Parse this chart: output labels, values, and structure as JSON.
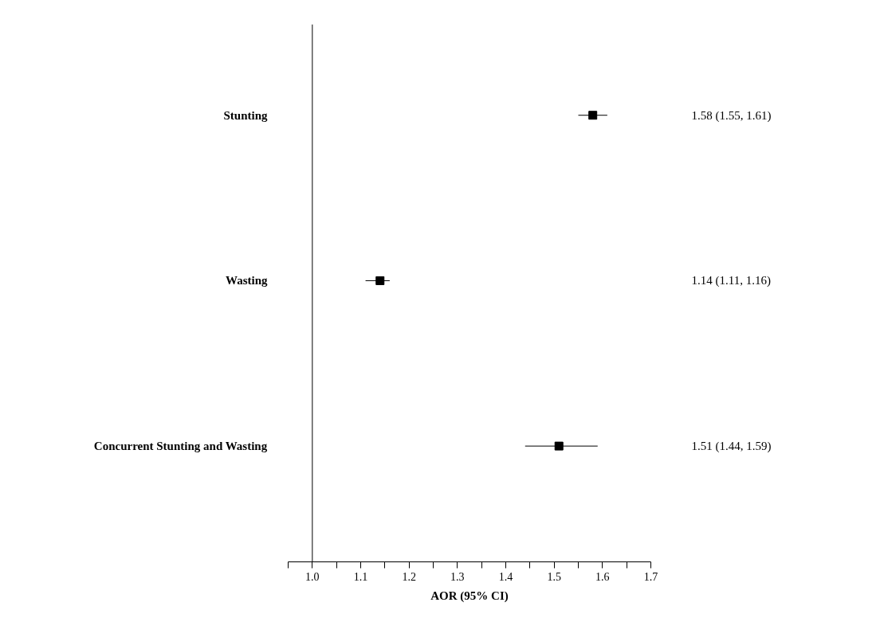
{
  "chart_data": {
    "type": "scatter",
    "orientation": "horizontal",
    "xlabel": "AOR (95% CI)",
    "categories": [
      "Stunting",
      "Wasting",
      "Concurrent Stunting and Wasting"
    ],
    "series": [
      {
        "color": "#000000",
        "values": [
          1.58,
          1.14,
          1.51
        ],
        "errors": [
          [
            1.55,
            1.61
          ],
          [
            1.11,
            1.16
          ],
          [
            1.44,
            1.59
          ]
        ],
        "value_labels": [
          "1.58 (1.55, 1.61)",
          "1.14 (1.11, 1.16)",
          "1.51 (1.44, 1.59)"
        ]
      }
    ],
    "xlim": [
      0.95,
      1.7
    ],
    "xticks": [
      {
        "value": 0.95,
        "label": null
      },
      {
        "value": 1.0,
        "label": "1.0"
      },
      {
        "value": 1.05,
        "label": null
      },
      1.1,
      {
        "value": 1.15,
        "label": null
      },
      1.2,
      {
        "value": 1.25,
        "label": null
      },
      1.3,
      {
        "value": 1.35,
        "label": null
      },
      1.4,
      {
        "value": 1.45,
        "label": null
      },
      1.5,
      {
        "value": 1.55,
        "label": null
      },
      1.6,
      {
        "value": 1.65,
        "label": null
      },
      1.7
    ],
    "ref_lines": [
      {
        "axis": "x",
        "value": 1.0,
        "color": "#000000"
      }
    ],
    "marker": "square",
    "grid": false
  }
}
